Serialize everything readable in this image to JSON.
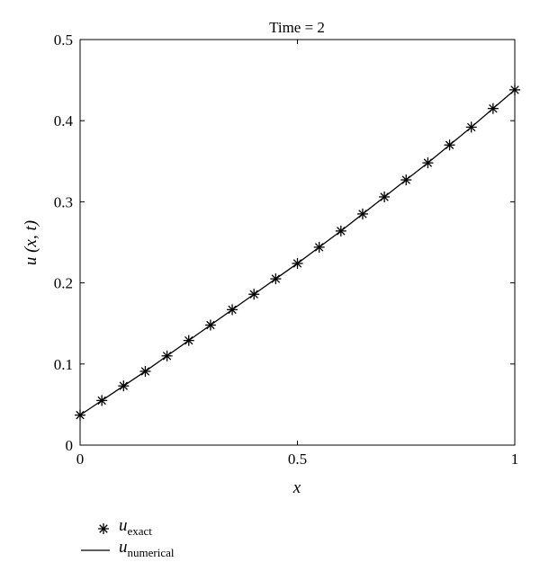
{
  "chart_data": {
    "type": "line",
    "title": "Time = 2",
    "xlabel": "x",
    "ylabel": "u (x, t)",
    "xlim": [
      0,
      1
    ],
    "ylim": [
      0,
      0.5
    ],
    "x_ticks": [
      0,
      0.5,
      1
    ],
    "y_ticks": [
      0,
      0.1,
      0.2,
      0.3,
      0.4,
      0.5
    ],
    "x_tick_labels": [
      "0",
      "0.5",
      "1"
    ],
    "y_tick_labels": [
      "0",
      "0.1",
      "0.2",
      "0.3",
      "0.4",
      "0.5"
    ],
    "grid": false,
    "legend_position": "below",
    "x": [
      0,
      0.05,
      0.1,
      0.15,
      0.2,
      0.25,
      0.3,
      0.35,
      0.4,
      0.45,
      0.5,
      0.55,
      0.6,
      0.65,
      0.7,
      0.75,
      0.8,
      0.85,
      0.9,
      0.95,
      1.0
    ],
    "series": [
      {
        "name": "u_exact",
        "legend_main": "u",
        "legend_sub": "exact",
        "style": "markers",
        "marker": "asterisk",
        "values": [
          0.037,
          0.055,
          0.073,
          0.091,
          0.11,
          0.129,
          0.148,
          0.167,
          0.186,
          0.205,
          0.224,
          0.244,
          0.264,
          0.285,
          0.306,
          0.327,
          0.348,
          0.37,
          0.392,
          0.415,
          0.438
        ]
      },
      {
        "name": "u_numerical",
        "legend_main": "u",
        "legend_sub": "numerical",
        "style": "line",
        "values": [
          0.037,
          0.055,
          0.073,
          0.091,
          0.11,
          0.129,
          0.148,
          0.167,
          0.186,
          0.205,
          0.224,
          0.244,
          0.264,
          0.285,
          0.306,
          0.327,
          0.348,
          0.37,
          0.392,
          0.415,
          0.438
        ]
      }
    ]
  },
  "colors": {
    "line": "#000000",
    "axis": "#000000",
    "background": "#ffffff"
  }
}
